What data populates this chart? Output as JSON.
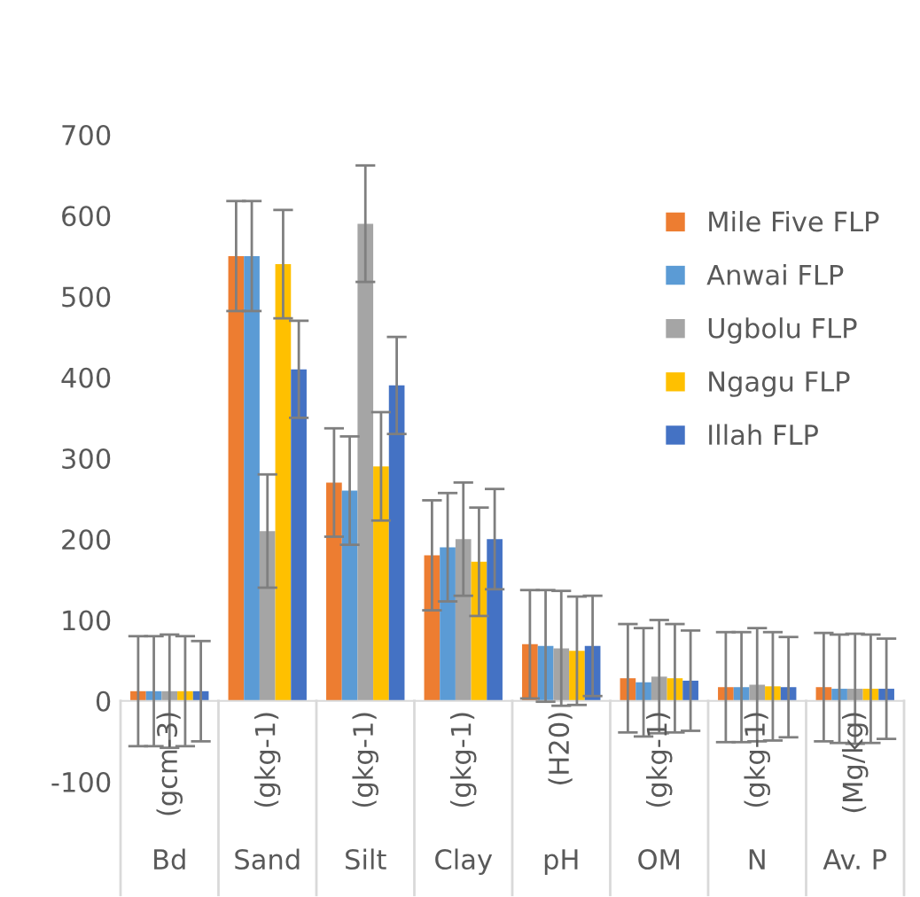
{
  "chart_data": {
    "type": "bar",
    "categories": [
      "Bd",
      "Sand",
      "Silt",
      "Clay",
      "pH",
      "OM",
      "N",
      "Av. P"
    ],
    "series": [
      {
        "name": "Mile Five FLP",
        "color": "#ed7d31",
        "values": [
          12,
          550,
          270,
          180,
          70,
          28,
          17,
          17
        ],
        "errors": [
          68,
          68,
          67,
          68,
          67,
          67,
          68,
          67
        ]
      },
      {
        "name": "Anwai FLP",
        "color": "#5b9bd5",
        "values": [
          12,
          550,
          260,
          190,
          68,
          23,
          17,
          15
        ],
        "errors": [
          68,
          68,
          67,
          67,
          69,
          67,
          68,
          67
        ]
      },
      {
        "name": "Ugbolu FLP",
        "color": "#a5a5a5",
        "values": [
          12,
          210,
          590,
          200,
          65,
          30,
          20,
          15
        ],
        "errors": [
          70,
          70,
          72,
          70,
          71,
          70,
          70,
          68
        ]
      },
      {
        "name": "Ngagu FLP",
        "color": "#ffc000",
        "values": [
          12,
          540,
          290,
          172,
          62,
          28,
          18,
          15
        ],
        "errors": [
          68,
          67,
          67,
          67,
          67,
          67,
          67,
          67
        ]
      },
      {
        "name": "Illah FLP",
        "color": "#4472c4",
        "values": [
          12,
          410,
          390,
          200,
          68,
          25,
          17,
          15
        ],
        "errors": [
          62,
          60,
          60,
          62,
          62,
          62,
          62,
          62
        ]
      }
    ],
    "annotations": [
      "(gcm-3)",
      "(gkg-1)",
      "(gkg-1)",
      "(gkg-1)",
      "(H20)",
      "(gkg-1)",
      "(gkg-1)",
      "(Mg/kg)"
    ],
    "ylim": [
      -100,
      700
    ],
    "yticks": [
      -100,
      0,
      100,
      200,
      300,
      400,
      500,
      600,
      700
    ],
    "legend": "top right"
  }
}
